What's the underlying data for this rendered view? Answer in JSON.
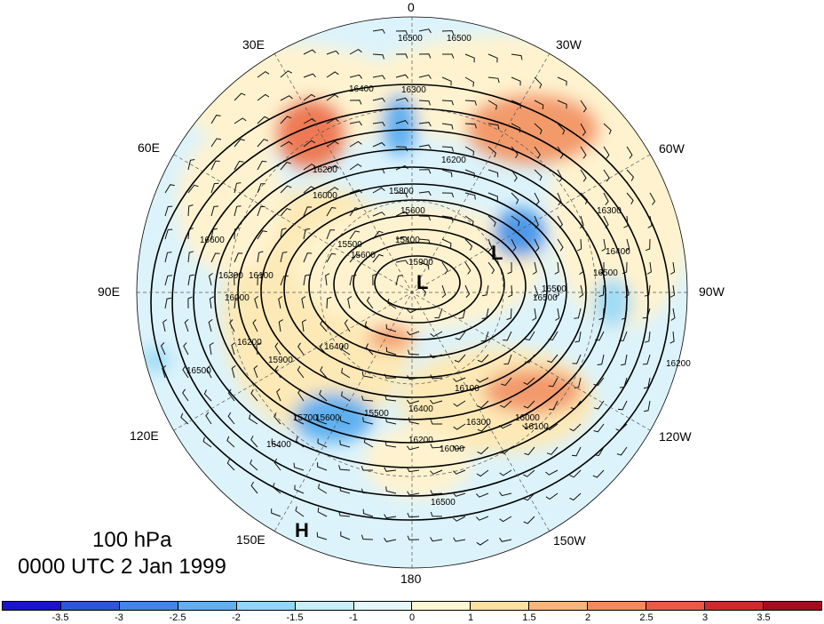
{
  "figure": {
    "level": "100 hPa",
    "time": "0000 UTC 2 Jan 1999"
  },
  "longitude_labels": {
    "lon_0": "0",
    "lon_30w": "30W",
    "lon_60w": "60W",
    "lon_90w": "90W",
    "lon_120w": "120W",
    "lon_150w": "150W",
    "lon_180": "180",
    "lon_150e": "150E",
    "lon_120e": "120E",
    "lon_90e": "90E",
    "lon_60e": "60E",
    "lon_30e": "30E"
  },
  "pressure_centers": [
    {
      "label": "L"
    },
    {
      "label": "L"
    },
    {
      "label": "H"
    }
  ],
  "contour_labels": [
    "16500",
    "16500",
    "16400",
    "16300",
    "16200",
    "16200",
    "16000",
    "15800",
    "15600",
    "15500",
    "15400",
    "15600",
    "15900",
    "16000",
    "16100",
    "16200",
    "16300",
    "16400",
    "16500",
    "16500",
    "16500",
    "16400",
    "16300",
    "16200",
    "16100",
    "16000",
    "15900",
    "15700",
    "15600",
    "15500",
    "16400",
    "16200",
    "16000",
    "16100",
    "16300",
    "16500",
    "16400",
    "16500",
    "16600"
  ],
  "colorbar": {
    "colors": [
      "#1a14c8",
      "#2c57d6",
      "#3f86e6",
      "#5fb0f2",
      "#8fd6f7",
      "#c8eefa",
      "#e6f7fb",
      "#fff6d2",
      "#fde0a0",
      "#f8b577",
      "#f38a5a",
      "#e95a45",
      "#cc2b2e",
      "#a40d1e"
    ],
    "tick_labels": [
      "-3.5",
      "-3",
      "-2.5",
      "-2",
      "-1.5",
      "-1",
      "0",
      "1",
      "1.5",
      "2",
      "2.5",
      "3",
      "3.5"
    ]
  },
  "map_data": {
    "projection": "north polar stereographic",
    "contour_interval_gpm": 100,
    "shading": "anomaly",
    "wind_barbs": true,
    "coastlines": true
  }
}
